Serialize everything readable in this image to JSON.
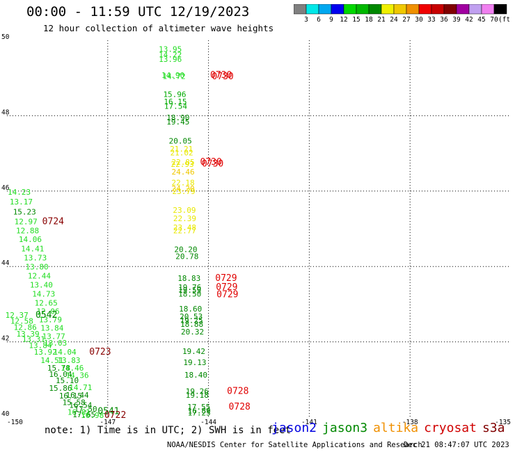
{
  "header": {
    "title": "00:00 - 11:59 UTC 12/19/2023",
    "subtitle": "12 hour collection of altimeter wave heights"
  },
  "colorbar": {
    "colors": [
      "#808080",
      "#00e8e8",
      "#00a8f0",
      "#0000f0",
      "#00d800",
      "#00b800",
      "#008800",
      "#f0f000",
      "#f0c800",
      "#f09000",
      "#f00000",
      "#c80000",
      "#800000",
      "#a000a0",
      "#c0a0f0",
      "#f080f0",
      "#000000"
    ],
    "labels": [
      "3",
      "6",
      "9",
      "12",
      "15",
      "18",
      "21",
      "24",
      "27",
      "30",
      "33",
      "36",
      "39",
      "42",
      "45",
      "70"
    ],
    "unit": "(ft)"
  },
  "note": "note: 1) Time is in UTC; 2) SWH is in feet",
  "legend": [
    {
      "label": "jason2",
      "color": "#0000e0"
    },
    {
      "label": "jason3",
      "color": "#008800"
    },
    {
      "label": "altika",
      "color": "#f09000"
    },
    {
      "label": "cryosat",
      "color": "#d00000"
    },
    {
      "label": "s3a",
      "color": "#800000"
    }
  ],
  "footer": {
    "credit": "NOAA/NESDIS Center for Satellite Applications and Research",
    "stamp": "Dec 21 08:47:07 UTC 2023"
  },
  "chart_data": {
    "type": "scatter",
    "xlim": [
      -150,
      -135
    ],
    "ylim": [
      40,
      50
    ],
    "x_ticks": [
      "-150",
      "-147",
      "-144",
      "-141",
      "-138",
      "-135"
    ],
    "x_tick_values": [
      -150,
      -147,
      -144,
      -141,
      -138,
      -135
    ],
    "y_ticks": [
      "40",
      "42",
      "44",
      "46",
      "48",
      "50"
    ],
    "y_tick_values": [
      40,
      42,
      44,
      46,
      48,
      50
    ],
    "grid": true,
    "points": [
      {
        "x": -145.48,
        "y": 49.7,
        "v": "13.95",
        "c": "#22dd22"
      },
      {
        "x": -145.48,
        "y": 49.55,
        "v": "14.22",
        "c": "#22dd22"
      },
      {
        "x": -145.48,
        "y": 49.43,
        "v": "13.96",
        "c": "#22dd22"
      },
      {
        "x": -145.4,
        "y": 49.0,
        "v": "14.90",
        "c": "#22dd22"
      },
      {
        "x": -145.37,
        "y": 48.98,
        "v": "14.72",
        "c": "#22dd22"
      },
      {
        "x": -145.35,
        "y": 48.5,
        "v": "15.96",
        "c": "#00aa00"
      },
      {
        "x": -145.33,
        "y": 48.3,
        "v": "16.15",
        "c": "#00aa00"
      },
      {
        "x": -145.32,
        "y": 48.18,
        "v": "17.54",
        "c": "#00aa00"
      },
      {
        "x": -145.25,
        "y": 47.88,
        "v": "18.90",
        "c": "#008800"
      },
      {
        "x": -145.25,
        "y": 47.77,
        "v": "19.45",
        "c": "#008800"
      },
      {
        "x": -145.18,
        "y": 47.26,
        "v": "20.05",
        "c": "#008800"
      },
      {
        "x": -145.15,
        "y": 47.05,
        "v": "21.21",
        "c": "#e8e800"
      },
      {
        "x": -145.14,
        "y": 46.95,
        "v": "21.02",
        "c": "#e8e800"
      },
      {
        "x": -145.1,
        "y": 46.7,
        "v": "22.85",
        "c": "#e8e800"
      },
      {
        "x": -145.12,
        "y": 46.64,
        "v": "22.93",
        "c": "#e8e800"
      },
      {
        "x": -145.1,
        "y": 46.44,
        "v": "24.46",
        "c": "#f0c800"
      },
      {
        "x": -145.1,
        "y": 46.15,
        "v": "22.18",
        "c": "#e8e800"
      },
      {
        "x": -145.1,
        "y": 46.0,
        "v": "24.20",
        "c": "#f0c800"
      },
      {
        "x": -145.08,
        "y": 45.92,
        "v": "23.79",
        "c": "#e8e800"
      },
      {
        "x": -145.06,
        "y": 45.42,
        "v": "23.09",
        "c": "#e8e800"
      },
      {
        "x": -145.05,
        "y": 45.2,
        "v": "22.39",
        "c": "#e8e800"
      },
      {
        "x": -145.05,
        "y": 44.96,
        "v": "23.48",
        "c": "#e8e800"
      },
      {
        "x": -145.05,
        "y": 44.88,
        "v": "22.77",
        "c": "#e8e800"
      },
      {
        "x": -145.02,
        "y": 44.38,
        "v": "20.20",
        "c": "#008800"
      },
      {
        "x": -144.98,
        "y": 44.2,
        "v": "20.78",
        "c": "#008800"
      },
      {
        "x": -144.92,
        "y": 43.62,
        "v": "18.83",
        "c": "#008800"
      },
      {
        "x": -144.9,
        "y": 43.38,
        "v": "19.76",
        "c": "#008800"
      },
      {
        "x": -144.9,
        "y": 43.3,
        "v": "19.59",
        "c": "#008800"
      },
      {
        "x": -144.9,
        "y": 43.2,
        "v": "18.50",
        "c": "#008800"
      },
      {
        "x": -144.88,
        "y": 42.8,
        "v": "18.60",
        "c": "#008800"
      },
      {
        "x": -144.86,
        "y": 42.6,
        "v": "20.53",
        "c": "#008800"
      },
      {
        "x": -144.85,
        "y": 42.5,
        "v": "19.25",
        "c": "#008800"
      },
      {
        "x": -144.84,
        "y": 42.4,
        "v": "18.88",
        "c": "#008800"
      },
      {
        "x": -144.82,
        "y": 42.2,
        "v": "20.32",
        "c": "#008800"
      },
      {
        "x": -144.78,
        "y": 41.68,
        "v": "19.42",
        "c": "#008800"
      },
      {
        "x": -144.75,
        "y": 41.38,
        "v": "19.13",
        "c": "#008800"
      },
      {
        "x": -144.72,
        "y": 41.05,
        "v": "18.40",
        "c": "#008800"
      },
      {
        "x": -144.68,
        "y": 40.62,
        "v": "19.26",
        "c": "#008800"
      },
      {
        "x": -144.68,
        "y": 40.52,
        "v": "19.18",
        "c": "#008800"
      },
      {
        "x": -144.63,
        "y": 40.2,
        "v": "17.55",
        "c": "#008800"
      },
      {
        "x": -144.62,
        "y": 40.1,
        "v": "16.89",
        "c": "#008800"
      },
      {
        "x": -144.62,
        "y": 40.05,
        "v": "17.25",
        "c": "#008800"
      },
      {
        "x": -149.98,
        "y": 45.9,
        "v": "14.23",
        "c": "#22dd22"
      },
      {
        "x": -149.92,
        "y": 45.65,
        "v": "13.17",
        "c": "#22dd22"
      },
      {
        "x": -149.82,
        "y": 45.38,
        "v": "15.23",
        "c": "#008800"
      },
      {
        "x": -149.78,
        "y": 45.12,
        "v": "12.97",
        "c": "#22dd22"
      },
      {
        "x": -149.73,
        "y": 44.88,
        "v": "12.88",
        "c": "#22dd22"
      },
      {
        "x": -149.65,
        "y": 44.65,
        "v": "14.06",
        "c": "#22dd22"
      },
      {
        "x": -149.58,
        "y": 44.4,
        "v": "14.41",
        "c": "#22dd22"
      },
      {
        "x": -149.5,
        "y": 44.16,
        "v": "13.73",
        "c": "#22dd22"
      },
      {
        "x": -149.45,
        "y": 43.92,
        "v": "13.80",
        "c": "#22dd22"
      },
      {
        "x": -149.38,
        "y": 43.68,
        "v": "12.44",
        "c": "#22dd22"
      },
      {
        "x": -149.32,
        "y": 43.44,
        "v": "13.40",
        "c": "#22dd22"
      },
      {
        "x": -149.25,
        "y": 43.2,
        "v": "14.73",
        "c": "#22dd22"
      },
      {
        "x": -149.18,
        "y": 42.96,
        "v": "12.65",
        "c": "#22dd22"
      },
      {
        "x": -149.12,
        "y": 42.74,
        "v": "12.06",
        "c": "#22dd22"
      },
      {
        "x": -149.05,
        "y": 42.52,
        "v": "13.79",
        "c": "#22dd22"
      },
      {
        "x": -150.05,
        "y": 42.64,
        "v": "12.37",
        "c": "#22dd22"
      },
      {
        "x": -149.9,
        "y": 42.48,
        "v": "12.58",
        "c": "#22dd22"
      },
      {
        "x": -149.8,
        "y": 42.32,
        "v": "12.86",
        "c": "#22dd22"
      },
      {
        "x": -149.72,
        "y": 42.14,
        "v": "13.39",
        "c": "#22dd22"
      },
      {
        "x": -149.55,
        "y": 42.0,
        "v": "13.31",
        "c": "#22dd22"
      },
      {
        "x": -149.0,
        "y": 42.3,
        "v": "13.84",
        "c": "#22dd22"
      },
      {
        "x": -148.95,
        "y": 42.08,
        "v": "13.77",
        "c": "#22dd22"
      },
      {
        "x": -148.9,
        "y": 41.9,
        "v": "13.03",
        "c": "#22dd22"
      },
      {
        "x": -149.35,
        "y": 41.84,
        "v": "13.84",
        "c": "#22dd22"
      },
      {
        "x": -149.2,
        "y": 41.66,
        "v": "13.92",
        "c": "#22dd22"
      },
      {
        "x": -148.62,
        "y": 41.66,
        "v": "14.04",
        "c": "#22dd22"
      },
      {
        "x": -149.0,
        "y": 41.44,
        "v": "14.51",
        "c": "#22dd22"
      },
      {
        "x": -148.5,
        "y": 41.44,
        "v": "13.83",
        "c": "#22dd22"
      },
      {
        "x": -148.8,
        "y": 41.24,
        "v": "15.78",
        "c": "#008800"
      },
      {
        "x": -148.4,
        "y": 41.24,
        "v": "14.46",
        "c": "#22dd22"
      },
      {
        "x": -148.75,
        "y": 41.07,
        "v": "16.04",
        "c": "#008800"
      },
      {
        "x": -148.25,
        "y": 41.04,
        "v": "14.36",
        "c": "#22dd22"
      },
      {
        "x": -148.55,
        "y": 40.9,
        "v": "15.10",
        "c": "#008800"
      },
      {
        "x": -148.75,
        "y": 40.7,
        "v": "15.86",
        "c": "#008800"
      },
      {
        "x": -148.15,
        "y": 40.72,
        "v": "14.71",
        "c": "#22dd22"
      },
      {
        "x": -148.25,
        "y": 40.52,
        "v": "16.44",
        "c": "#008800"
      },
      {
        "x": -148.45,
        "y": 40.5,
        "v": "16.15",
        "c": "#008800"
      },
      {
        "x": -148.35,
        "y": 40.32,
        "v": "15.58",
        "c": "#008800"
      },
      {
        "x": -148.15,
        "y": 40.25,
        "v": "16.54",
        "c": "#008800"
      },
      {
        "x": -148.0,
        "y": 40.15,
        "v": "17.50",
        "c": "#008800"
      },
      {
        "x": -148.2,
        "y": 40.06,
        "v": "16.81",
        "c": "#22dd22"
      },
      {
        "x": -148.05,
        "y": 40.0,
        "v": "17.65",
        "c": "#008800"
      },
      {
        "x": -147.8,
        "y": 39.98,
        "v": "16.98",
        "c": "#22dd22"
      }
    ],
    "time_labels": [
      {
        "x": -143.95,
        "y": 49.0,
        "t": "0730",
        "c": "#e00000"
      },
      {
        "x": -143.9,
        "y": 48.97,
        "t": "0730",
        "c": "#e00000"
      },
      {
        "x": -144.25,
        "y": 46.7,
        "t": "0730",
        "c": "#e00000"
      },
      {
        "x": -144.2,
        "y": 46.65,
        "t": "0730",
        "c": "#e00000"
      },
      {
        "x": -143.8,
        "y": 43.62,
        "t": "0729",
        "c": "#e00000"
      },
      {
        "x": -143.78,
        "y": 43.38,
        "t": "0729",
        "c": "#e00000"
      },
      {
        "x": -143.76,
        "y": 43.18,
        "t": "0729",
        "c": "#e00000"
      },
      {
        "x": -143.45,
        "y": 40.62,
        "t": "0728",
        "c": "#e00000"
      },
      {
        "x": -143.4,
        "y": 40.2,
        "t": "0728",
        "c": "#e00000"
      },
      {
        "x": -148.95,
        "y": 45.12,
        "t": "0724",
        "c": "#880000"
      },
      {
        "x": -149.15,
        "y": 42.64,
        "t": "0542",
        "c": "#008800"
      },
      {
        "x": -147.55,
        "y": 41.66,
        "t": "0723",
        "c": "#880000"
      },
      {
        "x": -147.3,
        "y": 40.08,
        "t": "0541",
        "c": "#008800"
      },
      {
        "x": -147.1,
        "y": 39.98,
        "t": "0722",
        "c": "#880000"
      }
    ]
  }
}
